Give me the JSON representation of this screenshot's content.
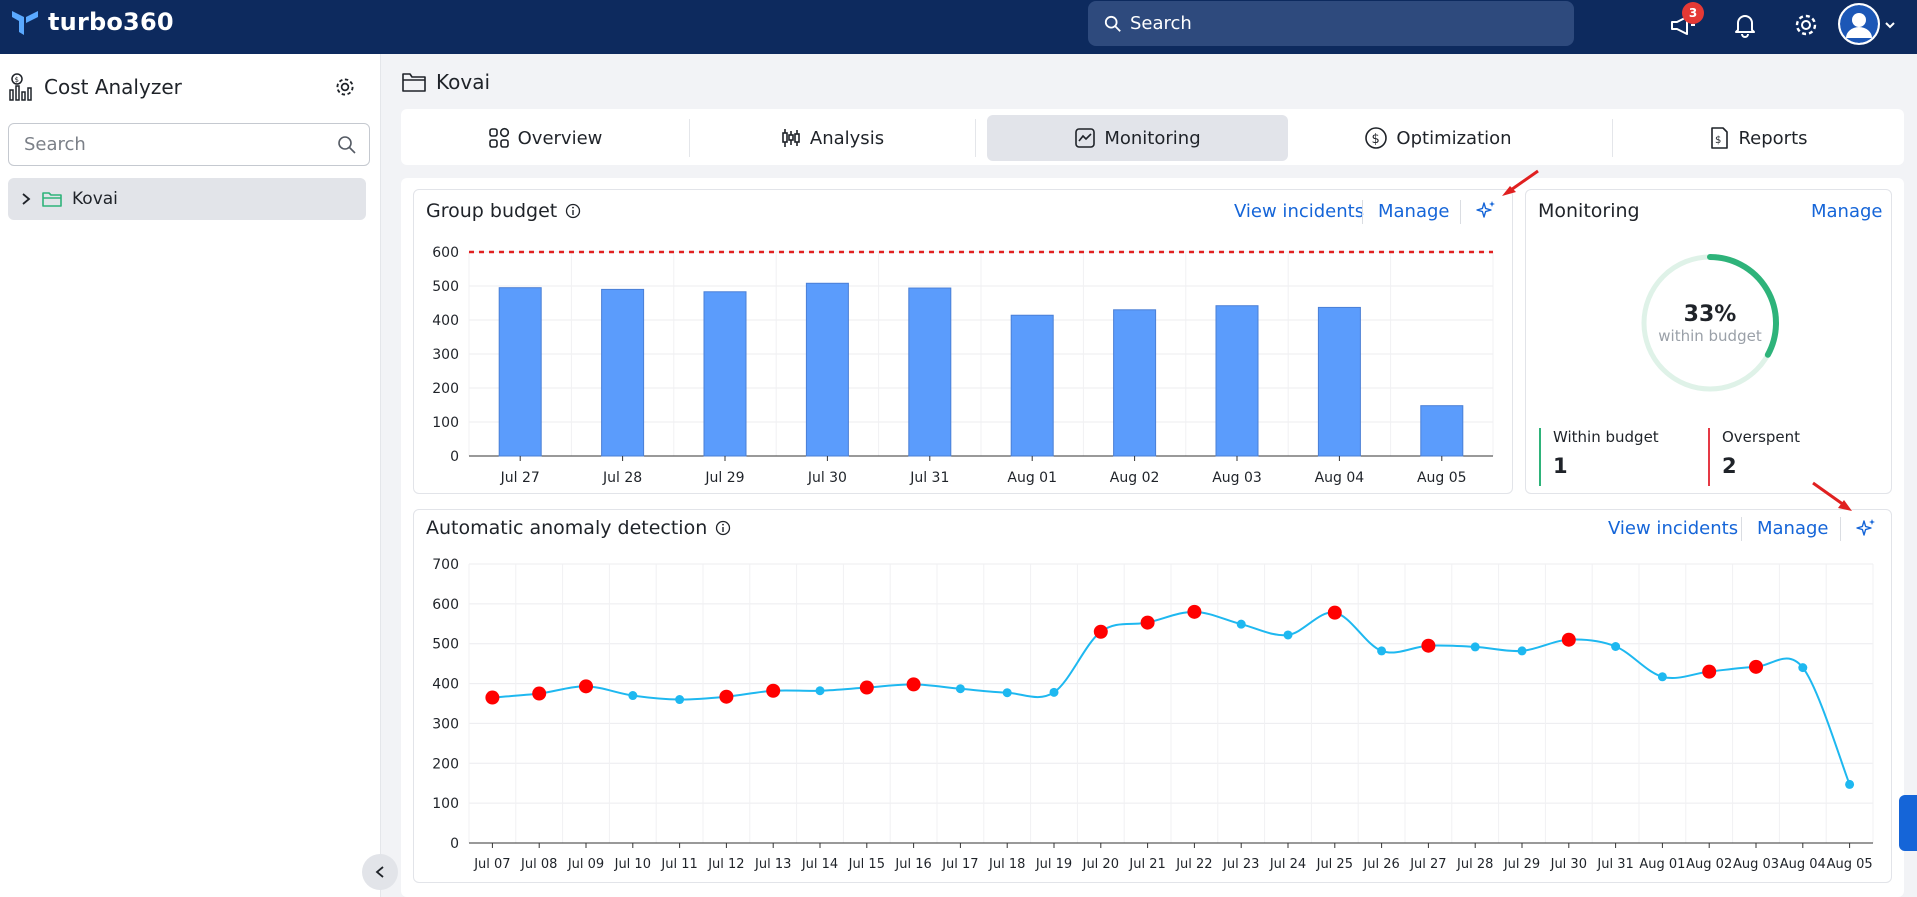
{
  "app": {
    "name": "turbo360"
  },
  "topbar": {
    "search_placeholder": "Search",
    "notifications_badge": "3"
  },
  "sidebar": {
    "title": "Cost Analyzer",
    "search_placeholder": "Search",
    "items": [
      {
        "label": "Kovai"
      }
    ]
  },
  "breadcrumb": {
    "label": "Kovai"
  },
  "tabs": [
    {
      "label": "Overview",
      "icon": "grid-icon"
    },
    {
      "label": "Analysis",
      "icon": "candlestick-icon"
    },
    {
      "label": "Monitoring",
      "icon": "line-chart-icon",
      "active": true
    },
    {
      "label": "Optimization",
      "icon": "dollar-icon"
    },
    {
      "label": "Reports",
      "icon": "report-icon"
    }
  ],
  "group_budget": {
    "title": "Group budget",
    "view_incidents": "View incidents",
    "manage": "Manage"
  },
  "monitoring": {
    "title": "Monitoring",
    "manage": "Manage",
    "percent": "33%",
    "percent_value": 33,
    "percent_label": "within budget",
    "within_label": "Within budget",
    "within_value": "1",
    "overspent_label": "Overspent",
    "overspent_value": "2",
    "within_color": "#2eb37a",
    "overspent_color": "#e53945"
  },
  "anomaly": {
    "title": "Automatic anomaly detection",
    "view_incidents": "View incidents",
    "manage": "Manage"
  },
  "colors": {
    "brand_nav": "#0d2a5e",
    "link": "#1565d8",
    "bar": "#5b9cfc",
    "line": "#1eb8f0",
    "anomaly": "#ff0000"
  },
  "chart_data": [
    {
      "type": "bar",
      "title": "Group budget",
      "categories": [
        "Jul 27",
        "Jul 28",
        "Jul 29",
        "Jul 30",
        "Jul 31",
        "Aug 01",
        "Aug 02",
        "Aug 03",
        "Aug 04",
        "Aug 05"
      ],
      "values": [
        495,
        490,
        483,
        508,
        494,
        414,
        430,
        442,
        437,
        148
      ],
      "threshold": 600,
      "ylim": [
        0,
        600
      ],
      "yticks": [
        0,
        100,
        200,
        300,
        400,
        500,
        600
      ],
      "grid": true
    },
    {
      "type": "line",
      "title": "Automatic anomaly detection",
      "categories": [
        "Jul 07",
        "Jul 08",
        "Jul 09",
        "Jul 10",
        "Jul 11",
        "Jul 12",
        "Jul 13",
        "Jul 14",
        "Jul 15",
        "Jul 16",
        "Jul 17",
        "Jul 18",
        "Jul 19",
        "Jul 20",
        "Jul 21",
        "Jul 22",
        "Jul 23",
        "Jul 24",
        "Jul 25",
        "Jul 26",
        "Jul 27",
        "Jul 28",
        "Jul 29",
        "Jul 30",
        "Jul 31",
        "Aug 01",
        "Aug 02",
        "Aug 03",
        "Aug 04",
        "Aug 05"
      ],
      "values": [
        365,
        375,
        393,
        370,
        360,
        367,
        382,
        382,
        390,
        398,
        387,
        377,
        378,
        530,
        553,
        580,
        549,
        522,
        578,
        482,
        495,
        492,
        482,
        510,
        493,
        417,
        430,
        442,
        440,
        147
      ],
      "anomalies": [
        0,
        1,
        2,
        5,
        6,
        8,
        9,
        13,
        14,
        15,
        18,
        20,
        23,
        26,
        27
      ],
      "ylim": [
        0,
        700
      ],
      "yticks": [
        0,
        100,
        200,
        300,
        400,
        500,
        600,
        700
      ],
      "grid": true
    }
  ]
}
